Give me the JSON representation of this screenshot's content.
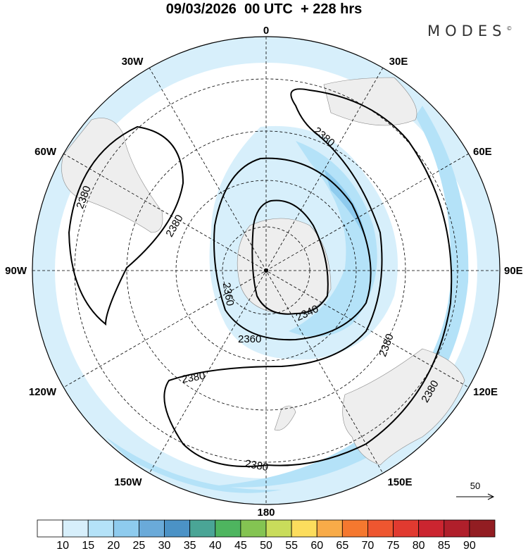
{
  "title": "09/03/2026  00 UTC  + 228 hrs",
  "logo": "MODES",
  "logo_mark": "©",
  "longitude_labels": {
    "top": "0",
    "top_left": "30W",
    "top_right": "30E",
    "left_upper": "60W",
    "right_upper": "60E",
    "left": "90W",
    "right": "90E",
    "left_lower": "120W",
    "right_lower": "120E",
    "bottom_left": "150W",
    "bottom_right": "150E",
    "bottom": "180"
  },
  "contour_labels": [
    "2380",
    "2380",
    "2380",
    "2380",
    "2380",
    "2380",
    "2380",
    "2360",
    "2360",
    "2340"
  ],
  "vector_reference": "50",
  "colorbar": {
    "colors": [
      "#ffffff",
      "#d7effb",
      "#b4e2f8",
      "#8ecbee",
      "#6aaad9",
      "#4b92c6",
      "#4aa596",
      "#4eb55f",
      "#84c452",
      "#c9dc5b",
      "#fcdd5d",
      "#f8ab48",
      "#f5782f",
      "#ee5630",
      "#e13a30",
      "#cb2530",
      "#b01f2b",
      "#921d22"
    ],
    "labels": [
      "10",
      "15",
      "20",
      "25",
      "30",
      "35",
      "40",
      "45",
      "50",
      "55",
      "60",
      "65",
      "70",
      "75",
      "80",
      "85",
      "90"
    ]
  }
}
